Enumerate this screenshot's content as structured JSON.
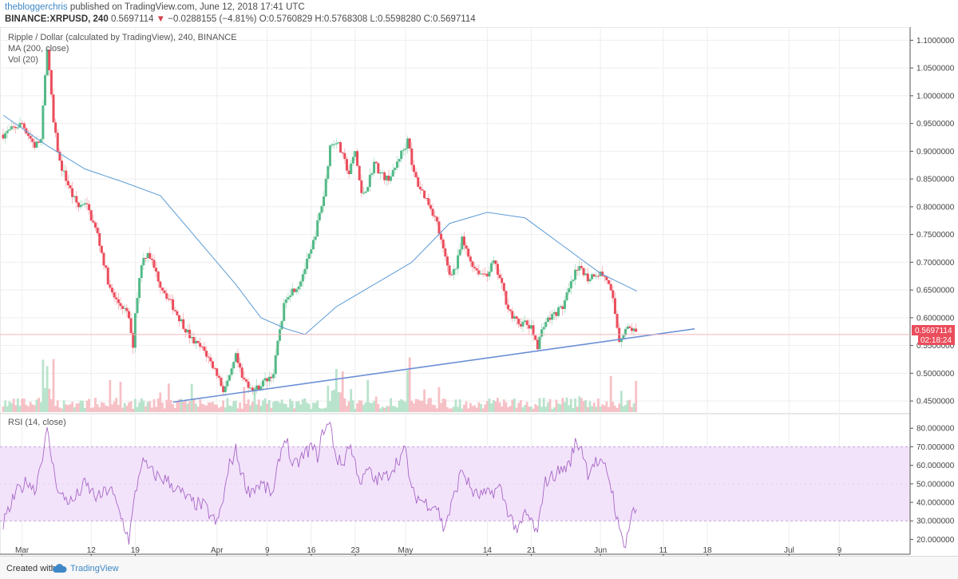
{
  "header": {
    "author": "thebloggerchris",
    "published": "published on TradingView.com, June 12, 2018 17:41 UTC",
    "symbol": "BINANCE:XRPUSD, 240",
    "last": "0.5697114",
    "arrow": "▼",
    "change": "−0.0288155 (−4.81%)",
    "ohlc": "O:0.5760829 H:0.5768308 L:0.5598280 C:0.5697114"
  },
  "legend": {
    "title": "Ripple / Dollar (calculated by TradingView), 240, BINANCE",
    "ma": "MA (200, close)",
    "vol": "Vol (20)",
    "rsi": "RSI (14, close)"
  },
  "price_badge": "0.5697114",
  "time_badge": "02:18:24",
  "footer": {
    "created": "Created with",
    "brand": "TradingView"
  },
  "colors": {
    "up": "#53b987",
    "down": "#eb4d5c",
    "ma": "#5b9bd5",
    "trend": "#6a8fd6",
    "rsi": "#a867c6",
    "rsiband": "#f2e3fb",
    "grid": "#eeeeee",
    "axis": "#555555"
  },
  "chart_data": [
    {
      "type": "candlestick",
      "title": "Ripple / Dollar (calculated by TradingView), 240, BINANCE",
      "ylim": [
        0.43,
        1.115
      ],
      "y_ticks": [
        "1.1000000",
        "1.0500000",
        "1.0000000",
        "0.9500000",
        "0.9000000",
        "0.8500000",
        "0.8000000",
        "0.7500000",
        "0.7000000",
        "0.6500000",
        "0.6000000",
        "0.5500000",
        "0.5000000",
        "0.4500000"
      ],
      "x_ticks": [
        "Mar",
        "12",
        "19",
        "Apr",
        "9",
        "16",
        "23",
        "May",
        "14",
        "21",
        "Jun",
        "11",
        "18",
        "Jul",
        "9"
      ],
      "x_tick_days": [
        0,
        11,
        18,
        31,
        39,
        46,
        53,
        61,
        74,
        81,
        92,
        102,
        109,
        122,
        130
      ],
      "xlim_days": [
        -3,
        141
      ],
      "price_path": [
        [
          -3,
          0.93
        ],
        [
          0,
          0.95
        ],
        [
          2,
          0.91
        ],
        [
          3,
          0.92
        ],
        [
          4,
          1.09
        ],
        [
          5,
          0.95
        ],
        [
          6,
          0.88
        ],
        [
          7,
          0.85
        ],
        [
          8,
          0.82
        ],
        [
          9,
          0.8
        ],
        [
          10,
          0.81
        ],
        [
          11,
          0.78
        ],
        [
          12,
          0.75
        ],
        [
          13,
          0.7
        ],
        [
          14,
          0.65
        ],
        [
          15,
          0.63
        ],
        [
          16,
          0.62
        ],
        [
          17,
          0.6
        ],
        [
          17.6,
          0.54
        ],
        [
          18,
          0.61
        ],
        [
          19,
          0.7
        ],
        [
          20,
          0.72
        ],
        [
          21,
          0.69
        ],
        [
          22,
          0.66
        ],
        [
          23,
          0.64
        ],
        [
          24,
          0.62
        ],
        [
          25,
          0.6
        ],
        [
          26,
          0.58
        ],
        [
          27,
          0.56
        ],
        [
          28,
          0.55
        ],
        [
          29,
          0.54
        ],
        [
          30,
          0.52
        ],
        [
          31,
          0.5
        ],
        [
          32,
          0.47
        ],
        [
          33,
          0.49
        ],
        [
          34,
          0.53
        ],
        [
          35,
          0.49
        ],
        [
          36,
          0.48
        ],
        [
          37,
          0.47
        ],
        [
          38,
          0.48
        ],
        [
          39,
          0.49
        ],
        [
          40,
          0.5
        ],
        [
          41,
          0.58
        ],
        [
          42,
          0.64
        ],
        [
          43,
          0.65
        ],
        [
          44,
          0.66
        ],
        [
          45,
          0.69
        ],
        [
          46,
          0.72
        ],
        [
          47,
          0.77
        ],
        [
          48,
          0.82
        ],
        [
          49,
          0.91
        ],
        [
          50,
          0.92
        ],
        [
          51,
          0.89
        ],
        [
          52,
          0.86
        ],
        [
          53,
          0.9
        ],
        [
          54,
          0.82
        ],
        [
          55,
          0.84
        ],
        [
          56,
          0.88
        ],
        [
          57,
          0.86
        ],
        [
          58,
          0.85
        ],
        [
          59,
          0.86
        ],
        [
          60,
          0.89
        ],
        [
          61,
          0.91
        ],
        [
          61.5,
          0.93
        ],
        [
          62,
          0.87
        ],
        [
          63,
          0.84
        ],
        [
          64,
          0.82
        ],
        [
          65,
          0.8
        ],
        [
          66,
          0.77
        ],
        [
          67,
          0.72
        ],
        [
          68,
          0.68
        ],
        [
          69,
          0.69
        ],
        [
          70,
          0.74
        ],
        [
          71,
          0.71
        ],
        [
          72,
          0.69
        ],
        [
          73,
          0.68
        ],
        [
          74,
          0.68
        ],
        [
          75,
          0.7
        ],
        [
          76,
          0.67
        ],
        [
          77,
          0.63
        ],
        [
          78,
          0.6
        ],
        [
          79,
          0.59
        ],
        [
          80,
          0.59
        ],
        [
          81,
          0.58
        ],
        [
          82,
          0.55
        ],
        [
          83,
          0.59
        ],
        [
          84,
          0.6
        ],
        [
          85,
          0.61
        ],
        [
          86,
          0.62
        ],
        [
          87,
          0.65
        ],
        [
          88,
          0.68
        ],
        [
          89,
          0.69
        ],
        [
          90,
          0.67
        ],
        [
          91,
          0.68
        ],
        [
          92,
          0.68
        ],
        [
          93,
          0.67
        ],
        [
          94,
          0.63
        ],
        [
          95,
          0.56
        ],
        [
          96,
          0.58
        ],
        [
          97,
          0.58
        ],
        [
          97.8,
          0.57
        ]
      ]
    },
    {
      "type": "line",
      "name": "MA (200, close)",
      "points": [
        [
          -3,
          0.965
        ],
        [
          4,
          0.91
        ],
        [
          10,
          0.868
        ],
        [
          16,
          0.845
        ],
        [
          22,
          0.82
        ],
        [
          28,
          0.74
        ],
        [
          34,
          0.66
        ],
        [
          38,
          0.6
        ],
        [
          42,
          0.58
        ],
        [
          45,
          0.57
        ],
        [
          50,
          0.62
        ],
        [
          56,
          0.66
        ],
        [
          62,
          0.7
        ],
        [
          68,
          0.77
        ],
        [
          74,
          0.79
        ],
        [
          80,
          0.78
        ],
        [
          86,
          0.73
        ],
        [
          92,
          0.68
        ],
        [
          97.8,
          0.648
        ]
      ]
    },
    {
      "type": "line",
      "name": "trendline",
      "points": [
        [
          24,
          0.448
        ],
        [
          107,
          0.58
        ]
      ]
    },
    {
      "type": "bar",
      "name": "Vol (20)",
      "note": "relative volume, 0–1 of panel height"
    },
    {
      "type": "line",
      "title": "RSI (14, close)",
      "ylim": [
        12,
        87
      ],
      "band": [
        30,
        70
      ],
      "y_ticks": [
        "80.000000",
        "70.000000",
        "60.000000",
        "50.000000",
        "40.000000",
        "30.000000",
        "20.000000"
      ],
      "rsi_path": [
        [
          -3,
          28
        ],
        [
          -1,
          45
        ],
        [
          1,
          52
        ],
        [
          2,
          46
        ],
        [
          3,
          62
        ],
        [
          4,
          78
        ],
        [
          5,
          58
        ],
        [
          6,
          44
        ],
        [
          8,
          40
        ],
        [
          10,
          50
        ],
        [
          12,
          42
        ],
        [
          14,
          48
        ],
        [
          16,
          30
        ],
        [
          17,
          20
        ],
        [
          18,
          44
        ],
        [
          19,
          62
        ],
        [
          21,
          55
        ],
        [
          23,
          52
        ],
        [
          25,
          46
        ],
        [
          27,
          40
        ],
        [
          29,
          38
        ],
        [
          31,
          28
        ],
        [
          32,
          42
        ],
        [
          33,
          60
        ],
        [
          34,
          68
        ],
        [
          35,
          55
        ],
        [
          36,
          46
        ],
        [
          38,
          50
        ],
        [
          40,
          44
        ],
        [
          41,
          66
        ],
        [
          42,
          76
        ],
        [
          43,
          58
        ],
        [
          44,
          62
        ],
        [
          46,
          70
        ],
        [
          47,
          65
        ],
        [
          48,
          80
        ],
        [
          49,
          82
        ],
        [
          50,
          64
        ],
        [
          51,
          60
        ],
        [
          52,
          72
        ],
        [
          54,
          50
        ],
        [
          55,
          58
        ],
        [
          56,
          52
        ],
        [
          58,
          54
        ],
        [
          60,
          64
        ],
        [
          61,
          68
        ],
        [
          62,
          45
        ],
        [
          64,
          40
        ],
        [
          66,
          38
        ],
        [
          67,
          26
        ],
        [
          68,
          35
        ],
        [
          70,
          58
        ],
        [
          71,
          50
        ],
        [
          72,
          44
        ],
        [
          74,
          44
        ],
        [
          76,
          48
        ],
        [
          77,
          38
        ],
        [
          78,
          30
        ],
        [
          79,
          24
        ],
        [
          80,
          34
        ],
        [
          81,
          30
        ],
        [
          82,
          22
        ],
        [
          83,
          50
        ],
        [
          85,
          56
        ],
        [
          87,
          60
        ],
        [
          88,
          72
        ],
        [
          89,
          70
        ],
        [
          90,
          56
        ],
        [
          91,
          62
        ],
        [
          93,
          58
        ],
        [
          94,
          44
        ],
        [
          95,
          24
        ],
        [
          96,
          18
        ],
        [
          97,
          34
        ],
        [
          97.8,
          36
        ]
      ]
    }
  ]
}
